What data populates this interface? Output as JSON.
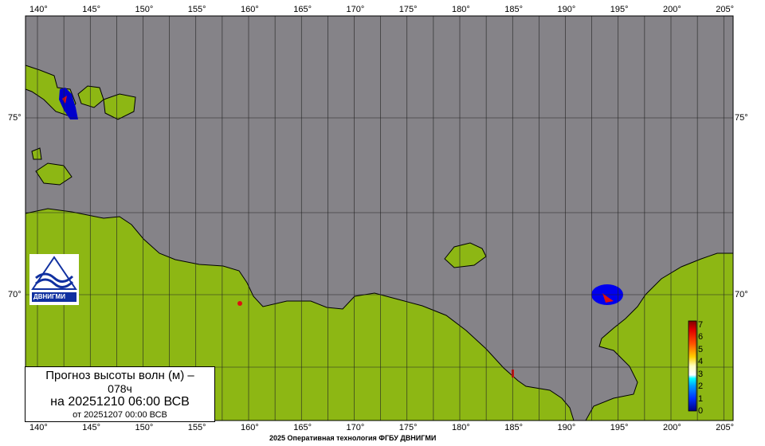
{
  "map": {
    "lon_labels": [
      "140°",
      "145°",
      "150°",
      "155°",
      "160°",
      "165°",
      "170°",
      "175°",
      "180°",
      "185°",
      "190°",
      "195°",
      "200°",
      "205°"
    ],
    "lat_labels": [
      "75°",
      "70°"
    ],
    "colors": {
      "sea": "#858388",
      "land": "#8db714",
      "coast": "#000000",
      "wave_low": "#0000cc",
      "wave_high": "#dd1010"
    }
  },
  "title_box": {
    "line1": "Прогноз высоты волн (м) –",
    "line2": "078ч",
    "line3": "на 20251210 06:00 ВСВ",
    "line4": "от 20251207 00:00 ВСВ"
  },
  "logo": {
    "text": "ДВНИГМИ"
  },
  "colorbar": {
    "min": 0,
    "max": 7,
    "ticks": [
      "0",
      "1",
      "2",
      "3",
      "4",
      "5",
      "6",
      "7"
    ]
  },
  "footer": "2025 Оперативная технология ФГБУ ДВНИГМИ"
}
